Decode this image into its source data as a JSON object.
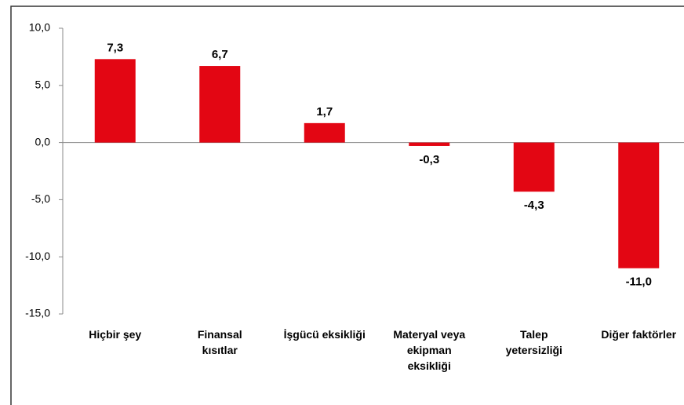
{
  "chart_data": {
    "type": "bar",
    "categories": [
      "Hiçbir şey",
      "Finansal\nkısıtlar",
      "İşgücü eksikliği",
      "Materyal veya\nekipman\neksikliği",
      "Talep\nyetersizliği",
      "Diğer faktörler"
    ],
    "values": [
      7.3,
      6.7,
      1.7,
      -0.3,
      -4.3,
      -11.0
    ],
    "value_labels": [
      "7,3",
      "6,7",
      "1,7",
      "-0,3",
      "-4,3",
      "-11,0"
    ],
    "color": "#e30613",
    "ylim": [
      -15,
      10
    ],
    "yticks": [
      {
        "value": -15,
        "label": "-15,0"
      },
      {
        "value": -10,
        "label": "-10,0"
      },
      {
        "value": -5,
        "label": "-5,0"
      },
      {
        "value": 0,
        "label": "0,0"
      },
      {
        "value": 5,
        "label": "5,0"
      },
      {
        "value": 10,
        "label": "10,0"
      }
    ],
    "grid": false
  }
}
